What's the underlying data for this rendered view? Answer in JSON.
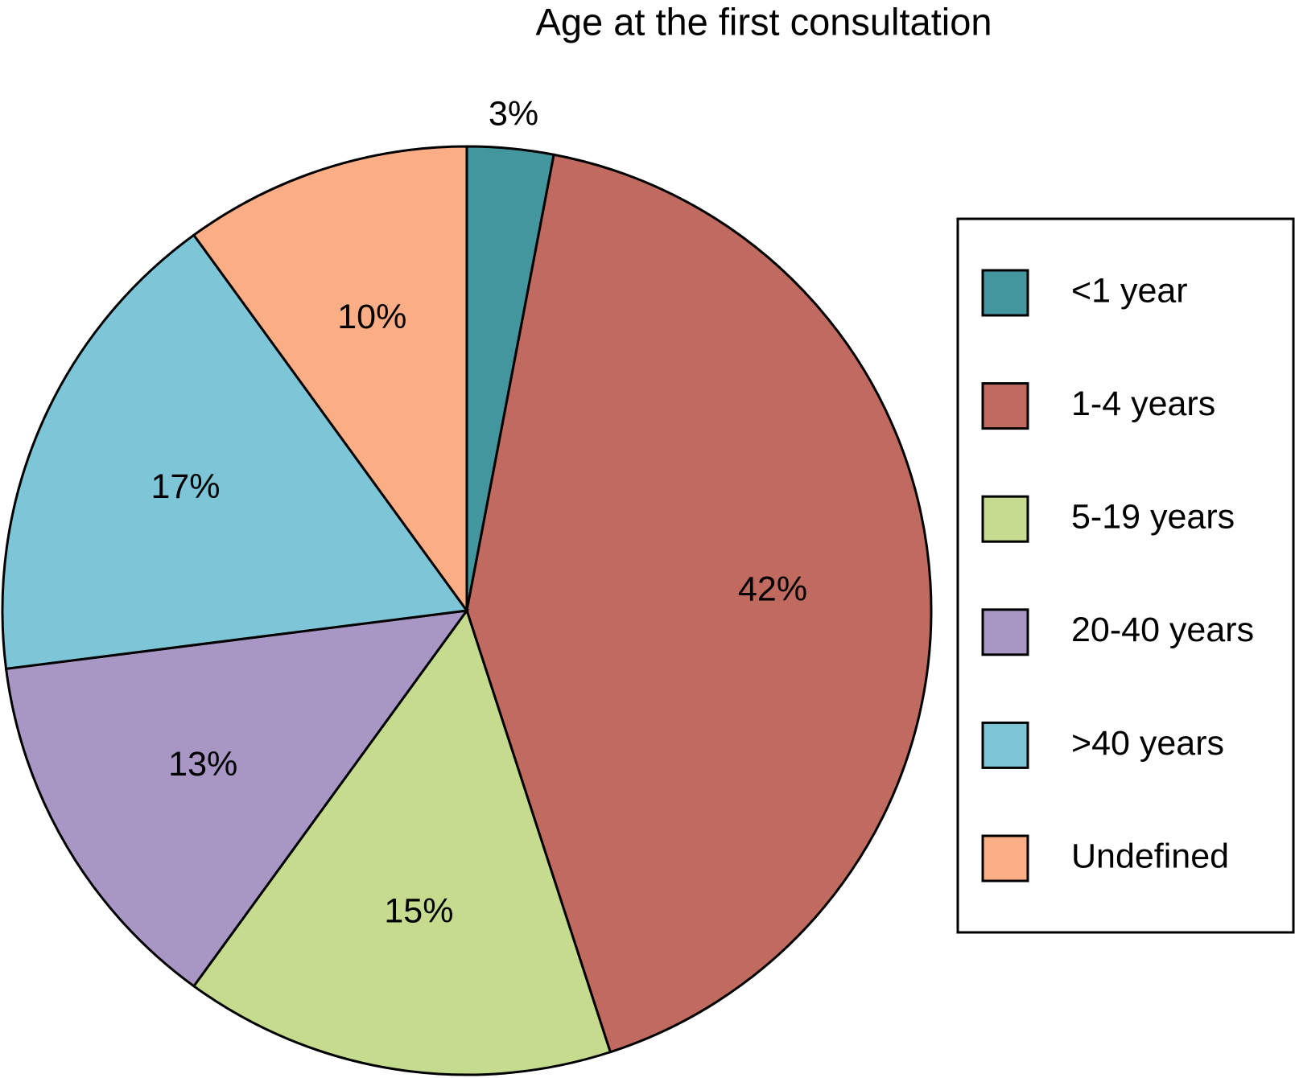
{
  "chart_data": {
    "type": "pie",
    "title": "Age at the first consultation",
    "categories": [
      "<1 year",
      "1-4 years",
      "5-19 years",
      "20-40 years",
      ">40 years",
      "Undefined"
    ],
    "values": [
      3,
      42,
      15,
      13,
      17,
      10
    ],
    "value_labels": [
      "3%",
      "42%",
      "15%",
      "13%",
      "17%",
      "10%"
    ],
    "colors": [
      "#43959e",
      "#c06a60",
      "#c5dc8e",
      "#a897c4",
      "#7dc6d7",
      "#fbae85"
    ],
    "legend": "right"
  }
}
